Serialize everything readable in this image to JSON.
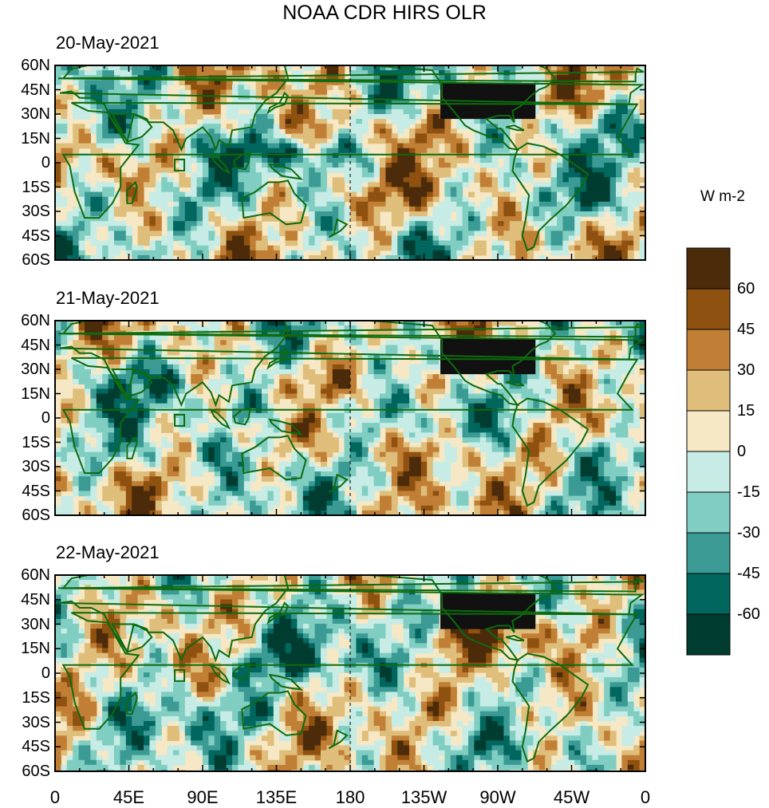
{
  "figure": {
    "title": "NOAA CDR HIRS OLR",
    "panels": [
      {
        "date": "20-May-2021",
        "seed": 3
      },
      {
        "date": "21-May-2021",
        "seed": 7
      },
      {
        "date": "22-May-2021",
        "seed": 11
      }
    ],
    "lat_ticks": [
      "60N",
      "45N",
      "30N",
      "15N",
      "0",
      "15S",
      "30S",
      "45S",
      "60S"
    ],
    "lon_ticks": [
      "0",
      "45E",
      "90E",
      "135E",
      "180",
      "135W",
      "90W",
      "45W",
      "0"
    ]
  },
  "colorbar": {
    "unit": "W m-2",
    "colors": [
      "#4c2b0b",
      "#8e510f",
      "#c17f36",
      "#dfbe7b",
      "#f6e8c5",
      "#c7ebe5",
      "#80cdc1",
      "#3b9b94",
      "#01665e",
      "#003c30"
    ],
    "labels": [
      "60",
      "45",
      "30",
      "15",
      "0",
      "-15",
      "-30",
      "-45",
      "-60"
    ]
  },
  "colors": {
    "coastline": "#0e6b0e",
    "frame": "#000000",
    "dateline": "#000000"
  }
}
